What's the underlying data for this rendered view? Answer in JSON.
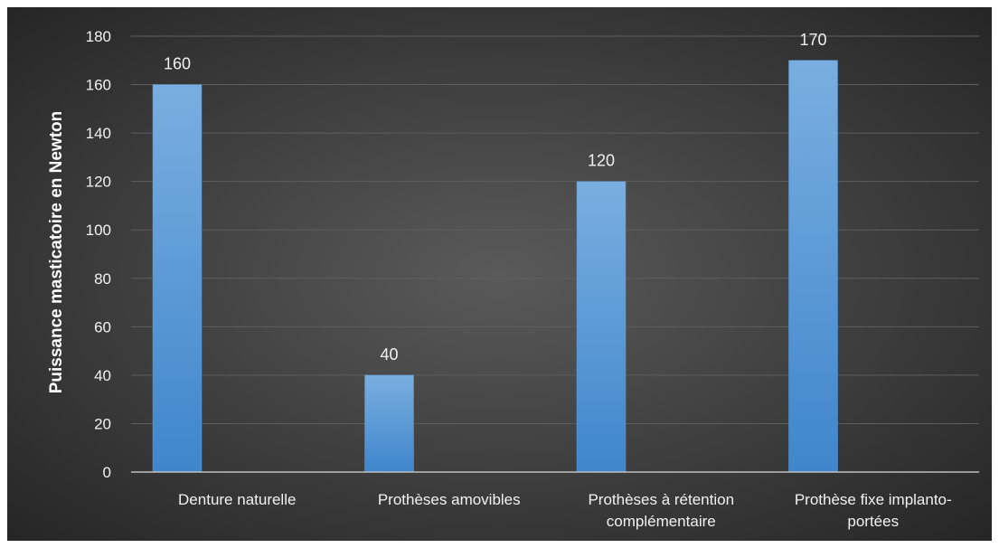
{
  "chart_data": {
    "type": "bar",
    "categories": [
      [
        "Denture naturelle"
      ],
      [
        "Prothèses amovibles"
      ],
      [
        "Prothèses à rétention",
        "complémentaire"
      ],
      [
        "Prothèse fixe implanto-",
        "portées"
      ]
    ],
    "values": [
      160,
      40,
      120,
      170
    ],
    "title": "",
    "xlabel": "",
    "ylabel": "Puissance masticatoire en Newton",
    "ylim": [
      0,
      180
    ],
    "yticks": [
      "0",
      "20",
      "40",
      "60",
      "80",
      "100",
      "120",
      "140",
      "160",
      "180"
    ],
    "grid": true,
    "legend": "none",
    "colors": {
      "bar_top": "#7aaee0",
      "bar_bottom": "#3f86cc",
      "background_center": "#5a5a5a",
      "background_edge": "#262626"
    }
  }
}
